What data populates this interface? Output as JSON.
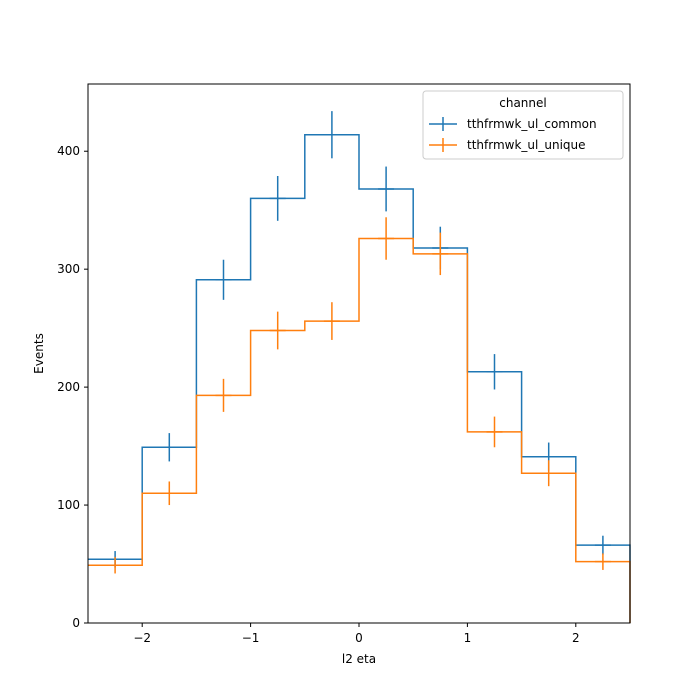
{
  "chart_data": {
    "type": "histogram",
    "xlabel": "l2 eta",
    "ylabel": "Events",
    "xlim": [
      -2.5,
      2.5
    ],
    "ylim": [
      0,
      457
    ],
    "xticks": [
      -2,
      -1,
      0,
      1,
      2
    ],
    "xtick_labels": [
      "−2",
      "−1",
      "0",
      "1",
      "2"
    ],
    "yticks": [
      0,
      100,
      200,
      300,
      400
    ],
    "yticks_labels": [
      "0",
      "100",
      "200",
      "300",
      "400"
    ],
    "bin_edges": [
      -2.5,
      -2.0,
      -1.5,
      -1.0,
      -0.5,
      0.0,
      0.5,
      1.0,
      1.5,
      2.0,
      2.5
    ],
    "legend": {
      "title": "channel",
      "placement": "upper right"
    },
    "series": [
      {
        "name": "tthfrmwk_ul_common",
        "color": "#1f77b4",
        "values": [
          54,
          149,
          291,
          360,
          414,
          368,
          318,
          213,
          141,
          66
        ],
        "errors": [
          7,
          12,
          17,
          19,
          20,
          19,
          18,
          15,
          12,
          8
        ]
      },
      {
        "name": "tthfrmwk_ul_unique",
        "color": "#ff7f0e",
        "values": [
          49,
          110,
          193,
          248,
          256,
          326,
          313,
          162,
          127,
          52
        ],
        "errors": [
          7,
          10,
          14,
          16,
          16,
          18,
          18,
          13,
          11,
          7
        ]
      }
    ]
  }
}
